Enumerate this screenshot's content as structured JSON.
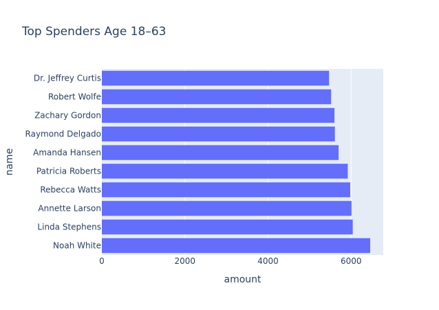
{
  "chart_data": {
    "type": "bar",
    "orientation": "horizontal",
    "title": "Top Spenders Age 18–63",
    "xlabel": "amount",
    "ylabel": "name",
    "xlim": [
      0,
      6775
    ],
    "x_ticks": [
      0,
      2000,
      4000,
      6000
    ],
    "grid": true,
    "colors": {
      "bar": "#636efa",
      "plot_bg": "#e5ecf6",
      "grid": "#ffffff",
      "text": "#2a3f5f"
    },
    "categories": [
      "Dr. Jeffrey Curtis",
      "Robert Wolfe",
      "Zachary Gordon",
      "Raymond Delgado",
      "Amanda Hansen",
      "Patricia Roberts",
      "Rebecca Watts",
      "Annette Larson",
      "Linda Stephens",
      "Noah White"
    ],
    "values": [
      5470,
      5520,
      5600,
      5610,
      5700,
      5920,
      5980,
      6010,
      6040,
      6460
    ]
  }
}
